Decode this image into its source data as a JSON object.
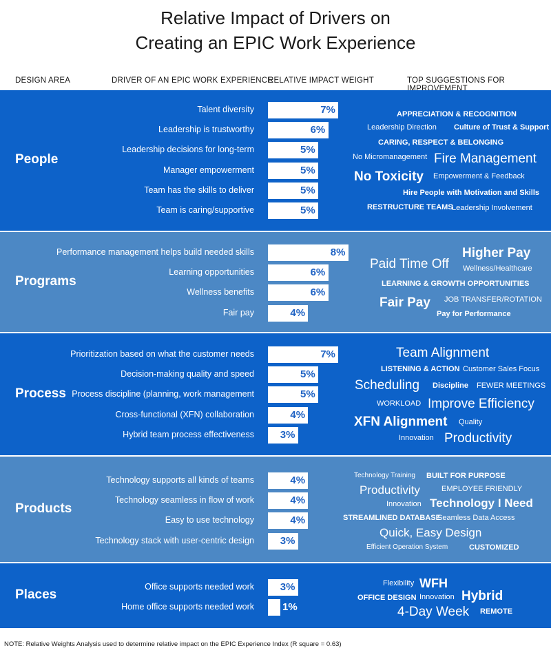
{
  "title_lines": [
    "Relative Impact of Drivers on",
    "Creating an EPIC Work Experience"
  ],
  "column_headers": [
    "DESIGN AREA",
    "DRIVER OF AN EPIC WORK EXPERIENCE",
    "RELATIVE IMPACT WEIGHT",
    "TOP SUGGESTIONS FOR IMPROVEMENT"
  ],
  "colors": {
    "dark_band": "#0d62c9",
    "light_band": "#4c88c5",
    "bar": "#ffffff",
    "value_text": "#1f63c4"
  },
  "chart_data": {
    "type": "bar",
    "orientation": "horizontal",
    "unit": "%",
    "groups": [
      {
        "area": "People",
        "drivers": [
          {
            "label": "Talent diversity",
            "value": 7,
            "display": "7%"
          },
          {
            "label": "Leadership is trustworthy",
            "value": 6,
            "display": "6%"
          },
          {
            "label": "Leadership decisions for long-term",
            "value": 5,
            "display": "5%"
          },
          {
            "label": "Manager empowerment",
            "value": 5,
            "display": "5%"
          },
          {
            "label": "Team has the skills to deliver",
            "value": 5,
            "display": "5%"
          },
          {
            "label": "Team is caring/supportive",
            "value": 5,
            "display": "5%"
          }
        ],
        "suggestions": [
          "APPRECIATION & RECOGNITION",
          "Leadership Direction",
          "Culture of Trust & Support",
          "CARING, RESPECT & BELONGING",
          "No Micromanagement",
          "Fire Management",
          "No Toxicity",
          "Empowerment & Feedback",
          "Hire People with Motivation and Skills",
          "RESTRUCTURE TEAMS",
          "Leadership Involvement"
        ]
      },
      {
        "area": "Programs",
        "drivers": [
          {
            "label": "Performance management helps build needed skills",
            "value": 8,
            "display": "8%"
          },
          {
            "label": "Learning opportunities",
            "value": 6,
            "display": "6%"
          },
          {
            "label": "Wellness benefits",
            "value": 6,
            "display": "6%"
          },
          {
            "label": "Fair pay",
            "value": 4,
            "display": "4%"
          }
        ],
        "suggestions": [
          "Paid Time Off",
          "Higher Pay",
          "Wellness/Healthcare",
          "LEARNING & GROWTH OPPORTUNITIES",
          "Fair Pay",
          "JOB TRANSFER/ROTATION",
          "Pay for Performance"
        ]
      },
      {
        "area": "Process",
        "drivers": [
          {
            "label": "Prioritization based on what the customer needs",
            "value": 7,
            "display": "7%"
          },
          {
            "label": "Decision-making quality and speed",
            "value": 5,
            "display": "5%"
          },
          {
            "label": "Process discipline (planning, work management",
            "value": 5,
            "display": "5%"
          },
          {
            "label": "Cross-functional (XFN) collaboration",
            "value": 4,
            "display": "4%"
          },
          {
            "label": "Hybrid team process effectiveness",
            "value": 3,
            "display": "3%"
          }
        ],
        "suggestions": [
          "Team Alignment",
          "LISTENING & ACTION",
          "Customer Sales Focus",
          "Scheduling",
          "Discipline",
          "FEWER MEETINGS",
          "WORKLOAD",
          "Improve Efficiency",
          "XFN Alignment",
          "Quality",
          "Innovation",
          "Productivity"
        ]
      },
      {
        "area": "Products",
        "drivers": [
          {
            "label": "Technology supports all kinds of teams",
            "value": 4,
            "display": "4%"
          },
          {
            "label": "Technology seamless in flow of work",
            "value": 4,
            "display": "4%"
          },
          {
            "label": "Easy to use technology",
            "value": 4,
            "display": "4%"
          },
          {
            "label": "Technology stack with user-centric design",
            "value": 3,
            "display": "3%"
          }
        ],
        "suggestions": [
          "Technology Training",
          "BUILT FOR PURPOSE",
          "Productivity",
          "EMPLOYEE FRIENDLY",
          "Innovation",
          "Technology I Need",
          "STREAMLINED DATABASE",
          "Seamless Data Access",
          "Quick, Easy Design",
          "Efficient Operation System",
          "CUSTOMIZED"
        ]
      },
      {
        "area": "Places",
        "drivers": [
          {
            "label": "Office supports needed work",
            "value": 3,
            "display": "3%"
          },
          {
            "label": "Home office supports needed work",
            "value": 1,
            "display": "1%"
          }
        ],
        "suggestions": [
          "Flexibility",
          "WFH",
          "OFFICE DESIGN",
          "Innovation",
          "Hybrid",
          "4-Day Week",
          "REMOTE"
        ]
      }
    ]
  },
  "note": "NOTE: Relative Weights Analysis used to determine relative impact on the    EPIC  Experience Index (R square = 0.63)"
}
